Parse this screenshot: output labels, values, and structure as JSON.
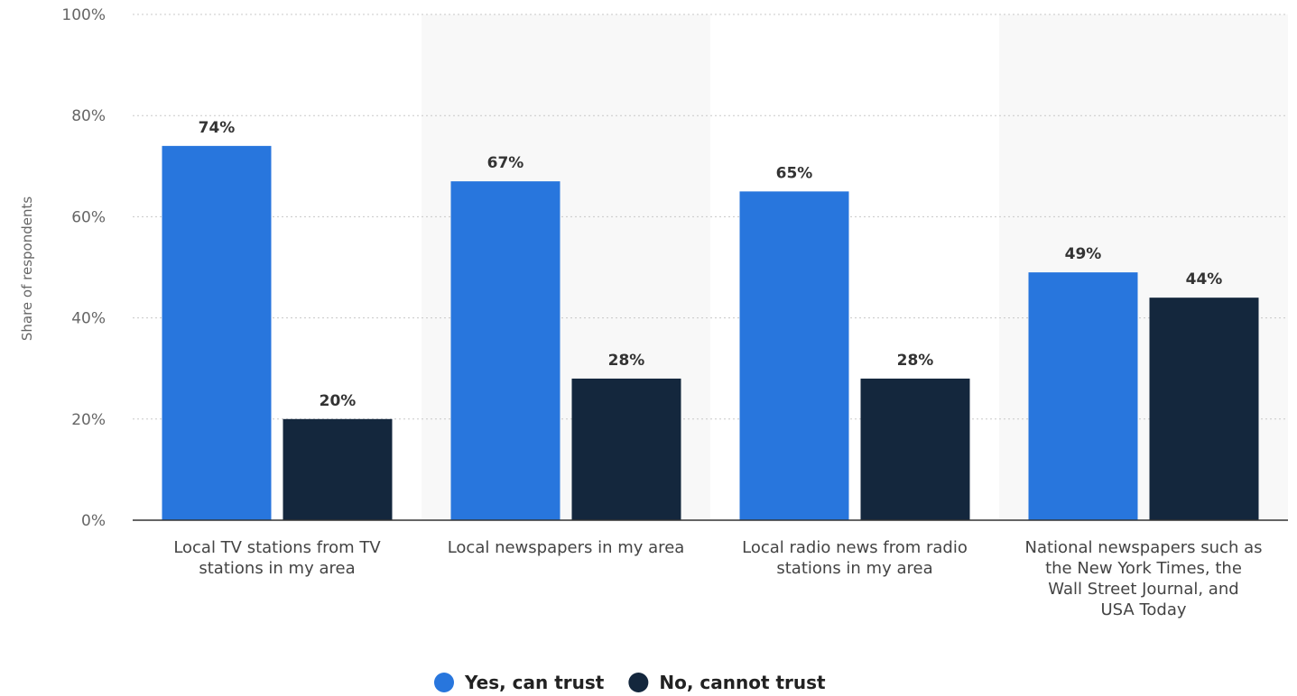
{
  "chart_data": {
    "type": "bar",
    "categories": [
      "Local TV stations from TV stations in my area",
      "Local newspapers in my area",
      "Local radio news from radio stations in my area",
      "National newspapers such as the New York Times, the Wall Street Journal, and USA Today"
    ],
    "series": [
      {
        "name": "Yes, can trust",
        "values": [
          74,
          67,
          65,
          49
        ],
        "color": "#2876DD"
      },
      {
        "name": "No, cannot trust",
        "values": [
          20,
          28,
          28,
          44
        ],
        "color": "#14273D"
      }
    ],
    "ylabel": "Share of respondents",
    "ylim": [
      0,
      100
    ],
    "yticks": [
      "0%",
      "20%",
      "40%",
      "60%",
      "80%",
      "100%"
    ],
    "value_suffix": "%",
    "grid": true,
    "alternating_band_color": "#F8F8F8",
    "legend_position": "bottom-center"
  }
}
